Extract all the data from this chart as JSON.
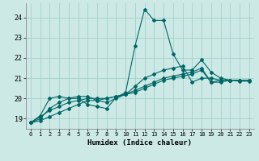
{
  "xlabel": "Humidex (Indice chaleur)",
  "ylabel": "",
  "bg_color": "#cce9e5",
  "grid_color": "#aad4cf",
  "line_color": "#006666",
  "xlim": [
    -0.5,
    23.5
  ],
  "ylim": [
    18.5,
    24.7
  ],
  "yticks": [
    19,
    20,
    21,
    22,
    23,
    24
  ],
  "xticks": [
    0,
    1,
    2,
    3,
    4,
    5,
    6,
    7,
    8,
    9,
    10,
    11,
    12,
    13,
    14,
    15,
    16,
    17,
    18,
    19,
    20,
    21,
    22,
    23
  ],
  "series": [
    {
      "x": [
        0,
        1,
        2,
        3,
        4,
        5,
        6,
        7,
        8,
        9,
        10,
        11,
        12,
        13,
        14,
        15,
        16,
        17,
        18,
        19,
        20,
        21,
        22,
        23
      ],
      "y": [
        18.8,
        19.15,
        20.0,
        20.1,
        20.0,
        20.0,
        19.7,
        19.6,
        19.5,
        20.05,
        20.3,
        22.6,
        24.4,
        23.85,
        23.85,
        22.2,
        21.4,
        21.4,
        21.9,
        21.3,
        21.0,
        20.9,
        20.85,
        20.85
      ]
    },
    {
      "x": [
        0,
        1,
        2,
        3,
        4,
        5,
        6,
        7,
        8,
        9,
        10,
        11,
        12,
        13,
        14,
        15,
        16,
        17,
        18,
        19,
        20,
        21,
        22,
        23
      ],
      "y": [
        18.8,
        19.0,
        19.5,
        19.8,
        20.0,
        20.1,
        20.1,
        19.9,
        19.8,
        20.0,
        20.2,
        20.6,
        21.0,
        21.2,
        21.4,
        21.5,
        21.6,
        20.8,
        21.0,
        21.0,
        20.9,
        20.9,
        20.9,
        20.9
      ]
    },
    {
      "x": [
        0,
        1,
        2,
        3,
        4,
        5,
        6,
        7,
        8,
        9,
        10,
        11,
        12,
        13,
        14,
        15,
        16,
        17,
        18,
        19,
        20,
        21,
        22,
        23
      ],
      "y": [
        18.8,
        19.1,
        19.4,
        19.6,
        19.8,
        19.9,
        20.0,
        20.0,
        20.0,
        20.1,
        20.2,
        20.4,
        20.6,
        20.8,
        21.0,
        21.1,
        21.2,
        21.3,
        21.5,
        20.8,
        20.9,
        20.9,
        20.9,
        20.9
      ]
    },
    {
      "x": [
        0,
        1,
        2,
        3,
        4,
        5,
        6,
        7,
        8,
        9,
        10,
        11,
        12,
        13,
        14,
        15,
        16,
        17,
        18,
        19,
        20,
        21,
        22,
        23
      ],
      "y": [
        18.8,
        18.9,
        19.1,
        19.3,
        19.5,
        19.7,
        19.9,
        19.9,
        20.0,
        20.1,
        20.2,
        20.3,
        20.5,
        20.7,
        20.9,
        21.0,
        21.1,
        21.2,
        21.4,
        20.8,
        20.8,
        20.9,
        20.9,
        20.9
      ]
    }
  ]
}
